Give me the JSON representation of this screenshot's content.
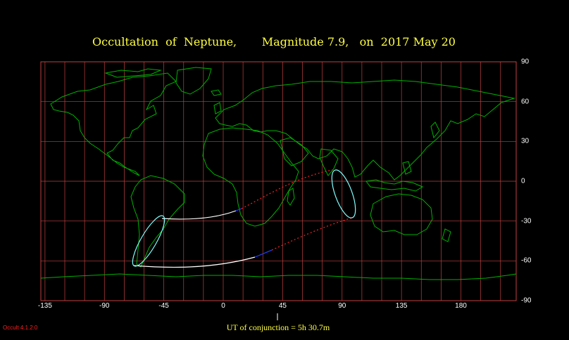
{
  "title": {
    "event": "Occultation  of  Neptune,",
    "magnitude": "Magnitude 7.9,",
    "date": "on  2017 May 20"
  },
  "axes": {
    "latitude_ticks": [
      "90",
      "60",
      "30",
      "0",
      "-30",
      "-60",
      "-90"
    ],
    "longitude_ticks": [
      "-135",
      "-90",
      "-45",
      "0",
      "45",
      "90",
      "135",
      "180"
    ]
  },
  "footer": {
    "conjunction": "UT of conjunction =  5h 30.7m"
  },
  "version": "Occult 4.1.2.0",
  "colors": {
    "background": "#000000",
    "grid": "#c04040",
    "coastline": "#00b000",
    "title": "#ffff40",
    "path_day": "#ffffff",
    "path_limit_ellipse": "#80ffff",
    "path_twilight": "#2040ff",
    "path_night": "#ff2020"
  }
}
